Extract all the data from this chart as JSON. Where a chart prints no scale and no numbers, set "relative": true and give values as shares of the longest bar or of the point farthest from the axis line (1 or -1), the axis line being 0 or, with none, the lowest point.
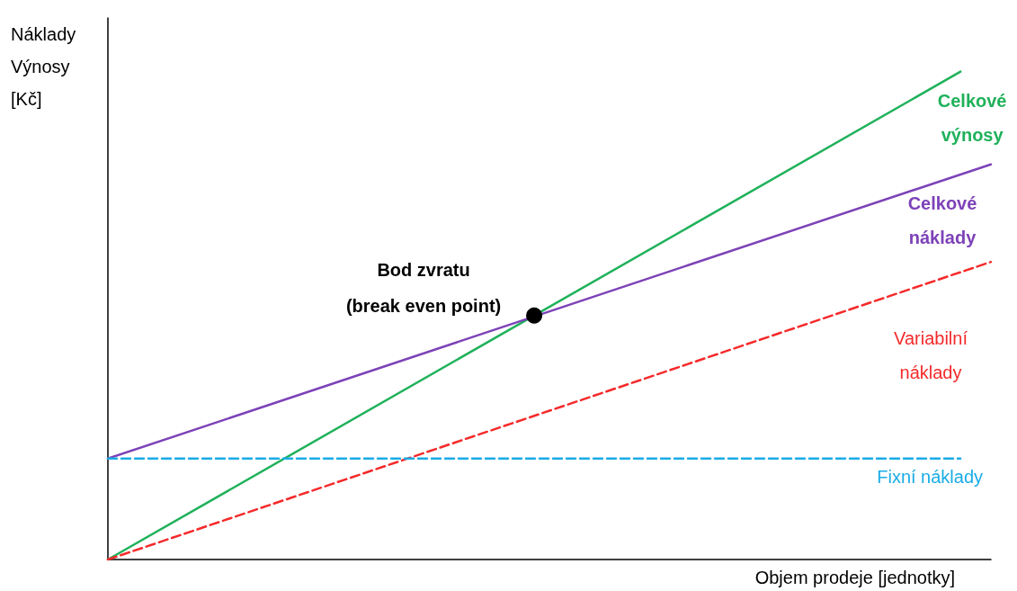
{
  "chart_data": {
    "type": "line",
    "relative": true,
    "xlabel": "Objem prodeje [jednotky]",
    "ylabel": "Náklady Výnosy [Kč]",
    "grid": false,
    "legend": false,
    "marker": "none",
    "categories": [
      null,
      null,
      null,
      null,
      null,
      null,
      null,
      null,
      null,
      null,
      null,
      null,
      null,
      null,
      null,
      null,
      null,
      null,
      null,
      null,
      null,
      null,
      null,
      null,
      null,
      null,
      null,
      null,
      null,
      null
    ],
    "series": [
      {
        "name": "Celkové výnosy",
        "color": "#1fb15a",
        "line_style": "solid",
        "values": [
          0,
          null,
          null,
          null,
          null,
          null,
          null,
          null,
          null,
          null,
          null,
          null,
          null,
          null,
          null,
          null,
          null,
          null,
          null,
          null,
          null,
          null,
          null,
          null,
          null,
          null,
          null,
          null,
          1,
          null
        ]
      },
      {
        "name": "Celkové náklady",
        "color": "#7d42b8",
        "line_style": "solid",
        "values": [
          0.207,
          null,
          null,
          null,
          null,
          null,
          null,
          null,
          null,
          null,
          null,
          null,
          null,
          null,
          null,
          null,
          null,
          null,
          null,
          null,
          null,
          null,
          null,
          null,
          null,
          null,
          null,
          null,
          null,
          0.81
        ]
      },
      {
        "name": "Variabilní náklady",
        "color": "#f52a2a",
        "line_style": "dashed",
        "values": [
          0,
          null,
          null,
          null,
          null,
          null,
          null,
          null,
          null,
          null,
          null,
          null,
          null,
          null,
          null,
          null,
          null,
          null,
          null,
          null,
          null,
          null,
          null,
          null,
          null,
          null,
          null,
          null,
          null,
          0.61
        ]
      },
      {
        "name": "Fixní náklady",
        "color": "#1aace6",
        "line_style": "dashed",
        "values": [
          0.207,
          null,
          null,
          null,
          null,
          null,
          null,
          null,
          null,
          null,
          null,
          null,
          null,
          null,
          null,
          null,
          null,
          null,
          null,
          null,
          null,
          null,
          null,
          null,
          null,
          null,
          null,
          null,
          0.207,
          null
        ]
      },
      {
        "color": "#000000",
        "marker": "circle",
        "values": [
          null,
          null,
          null,
          null,
          null,
          null,
          null,
          null,
          null,
          null,
          null,
          null,
          null,
          null,
          0.5,
          null,
          null,
          null,
          null,
          null,
          null,
          null,
          null,
          null,
          null,
          null,
          null,
          null,
          null,
          null
        ]
      }
    ],
    "annotations": [
      "Bod zvratu\n(break even point)"
    ]
  }
}
